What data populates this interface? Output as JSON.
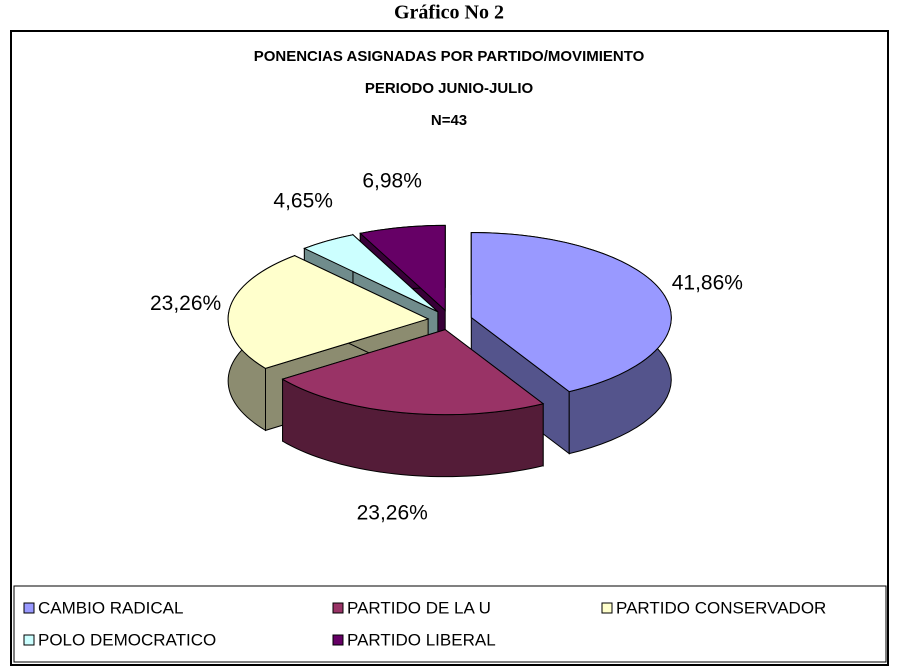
{
  "caption": "Gráfico No 2",
  "chart_data": {
    "type": "pie3d",
    "title": [
      "PONENCIAS ASIGNADAS POR PARTIDO/MOVIMIENTO",
      "PERIODO JUNIO-JULIO",
      "N=43"
    ],
    "categories": [
      "CAMBIO RADICAL",
      "PARTIDO DE LA U",
      "PARTIDO CONSERVADOR",
      "POLO DEMOCRATICO",
      "PARTIDO LIBERAL"
    ],
    "values": [
      41.86,
      23.26,
      23.26,
      4.65,
      6.98
    ],
    "value_labels": [
      "41,86%",
      "23,26%",
      "23,26%",
      "4,65%",
      "6,98%"
    ],
    "colors": [
      "#9999ff",
      "#993366",
      "#ffffcc",
      "#ccffff",
      "#660066"
    ],
    "legend": "bottom"
  }
}
